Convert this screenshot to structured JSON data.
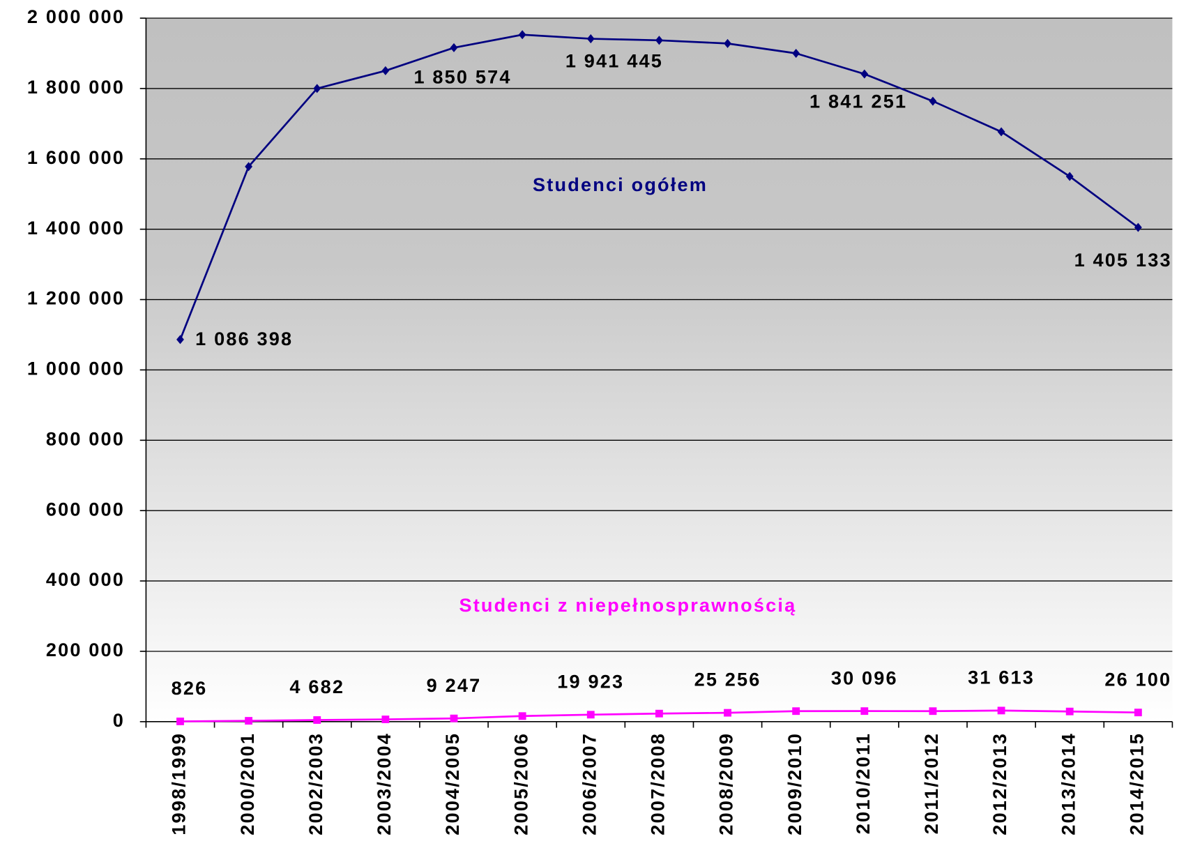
{
  "chart_data": {
    "type": "line",
    "categories": [
      "1998/1999",
      "2000/2001",
      "2002/2003",
      "2003/2004",
      "2004/2005",
      "2005/2006",
      "2006/2007",
      "2007/2008",
      "2008/2009",
      "2009/2010",
      "2010/2011",
      "2011/2012",
      "2012/2013",
      "2013/2014",
      "2014/2015"
    ],
    "series": [
      {
        "name": "Studenci ogółem",
        "color": "#000080",
        "values": [
          1086398,
          1578000,
          1800000,
          1850574,
          1916000,
          1953000,
          1941445,
          1937000,
          1928000,
          1900000,
          1841251,
          1764000,
          1677000,
          1550000,
          1405133
        ],
        "value_labels": [
          "1 086 398",
          null,
          null,
          "1 850 574",
          null,
          null,
          "1 941 445",
          null,
          null,
          null,
          "1 841 251",
          null,
          null,
          null,
          "1 405 133"
        ]
      },
      {
        "name": "Studenci z niepełnosprawnością",
        "color": "#ff00ff",
        "values": [
          826,
          2500,
          4682,
          6500,
          9247,
          16000,
          19923,
          23000,
          25256,
          30000,
          30096,
          30000,
          31613,
          29000,
          26100
        ],
        "value_labels": [
          "826",
          null,
          "4 682",
          null,
          "9 247",
          null,
          "19 923",
          null,
          "25 256",
          null,
          "30 096",
          null,
          "31 613",
          null,
          "26 100"
        ]
      }
    ],
    "ylim": [
      0,
      2000000
    ],
    "yticks": [
      0,
      {
        "value": 200000,
        "label": "200 000"
      },
      {
        "value": 400000,
        "label": "400 000"
      },
      {
        "value": 600000,
        "label": "600 000"
      },
      {
        "value": 800000,
        "label": "800 000"
      },
      {
        "value": 1000000,
        "label": "1 000 000"
      },
      {
        "value": 1200000,
        "label": "1 200 000"
      },
      {
        "value": 1400000,
        "label": "1 400 000"
      },
      {
        "value": 1600000,
        "label": "1 600 000"
      },
      {
        "value": 1800000,
        "label": "1 800 000"
      },
      {
        "value": 2000000,
        "label": "2 000 000"
      }
    ],
    "grid": true
  }
}
